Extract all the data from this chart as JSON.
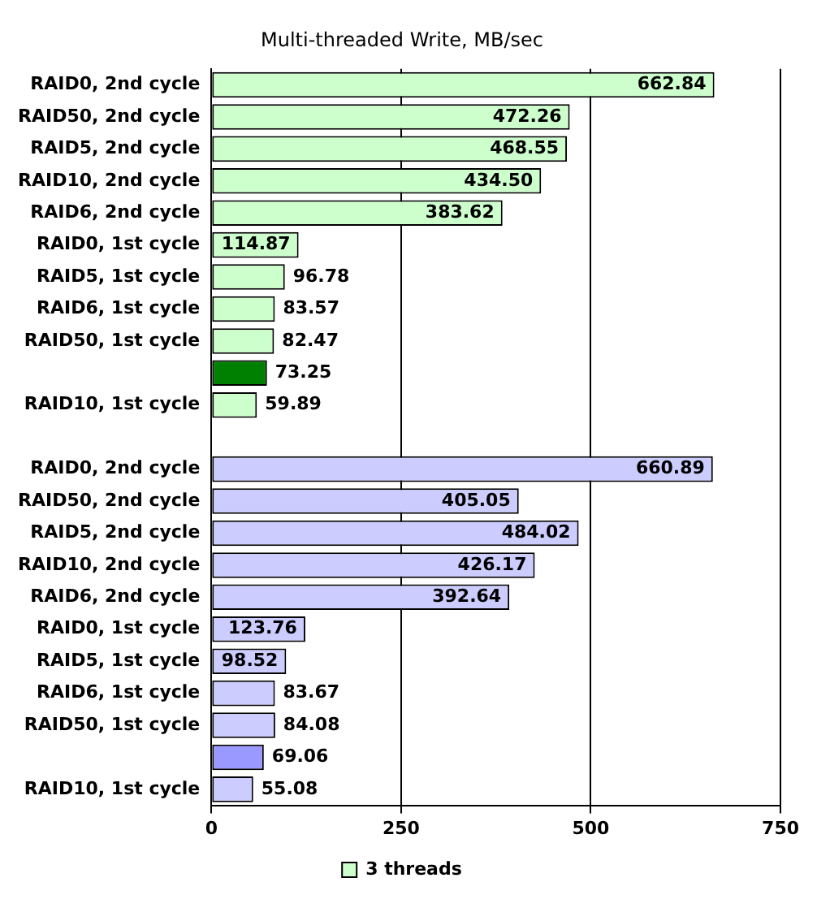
{
  "chart_data": {
    "type": "bar",
    "orientation": "horizontal",
    "title": "Multi-threaded Write, MB/sec",
    "categories": [
      "RAID0, 2nd cycle",
      "RAID50, 2nd cycle",
      "RAID5, 2nd cycle",
      "RAID10, 2nd cycle",
      "RAID6, 2nd cycle",
      "RAID0, 1st cycle",
      "RAID5, 1st cycle",
      "RAID6, 1st cycle",
      "RAID50, 1st cycle",
      null,
      "RAID10, 1st cycle",
      null,
      "RAID0, 2nd cycle",
      "RAID50, 2nd cycle",
      "RAID5, 2nd cycle",
      "RAID10, 2nd cycle",
      "RAID6, 2nd cycle",
      "RAID0, 1st cycle",
      "RAID5, 1st cycle",
      "RAID6, 1st cycle",
      "RAID50, 1st cycle",
      null,
      "RAID10, 1st cycle"
    ],
    "series": [
      {
        "name": "3 threads",
        "color": "#ccffcc",
        "colors": [
          "#ccffcc",
          "#ccffcc",
          "#ccffcc",
          "#ccffcc",
          "#ccffcc",
          "#ccffcc",
          "#ccffcc",
          "#ccffcc",
          "#ccffcc",
          "#008000",
          "#ccffcc",
          null,
          "#ccccff",
          "#ccccff",
          "#ccccff",
          "#ccccff",
          "#ccccff",
          "#ccccff",
          "#ccccff",
          "#ccccff",
          "#ccccff",
          "#9999ff",
          "#ccccff"
        ],
        "values": [
          662.84,
          472.26,
          468.55,
          434.5,
          383.62,
          114.87,
          96.78,
          83.57,
          82.47,
          73.25,
          59.89,
          null,
          660.89,
          405.05,
          484.02,
          426.17,
          392.64,
          123.76,
          98.52,
          83.67,
          84.08,
          69.06,
          55.08
        ],
        "value_labels": [
          "662.84",
          "472.26",
          "468.55",
          "434.50",
          "383.62",
          "114.87",
          "96.78",
          "83.57",
          "82.47",
          "73.25",
          "59.89",
          null,
          "660.89",
          "405.05",
          "484.02",
          "426.17",
          "392.64",
          "123.76",
          "98.52",
          "83.67",
          "84.08",
          "69.06",
          "55.08"
        ]
      }
    ],
    "xlim": [
      0,
      750
    ],
    "xticks": [
      0,
      250,
      500,
      750
    ],
    "grid": "x",
    "legend": "bottom"
  }
}
